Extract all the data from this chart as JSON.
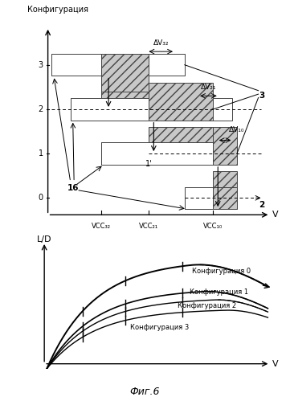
{
  "title_top": "Конфигурация",
  "ylabel_bottom": "L/D",
  "xlabel": "V",
  "fig_label": "Фиг.6",
  "vcc32_label": "VCC₃₂",
  "vcc21_label": "VCC₂₁",
  "vcc10_label": "VCC₁₀",
  "dv32_label": "ΔV₃₂",
  "dv21_label": "ΔV₂₁",
  "dv10_label": "ΔV₁₀",
  "label_16": "16",
  "label_1prime": "1'",
  "label_3": "3",
  "label_2": "2",
  "konfig0": "Конфигурация 0",
  "konfig1": "Конфигурация 1",
  "konfig2": "Конфигурация 2",
  "konfig3": "Конфигурация 3",
  "bg_color": "#ffffff"
}
